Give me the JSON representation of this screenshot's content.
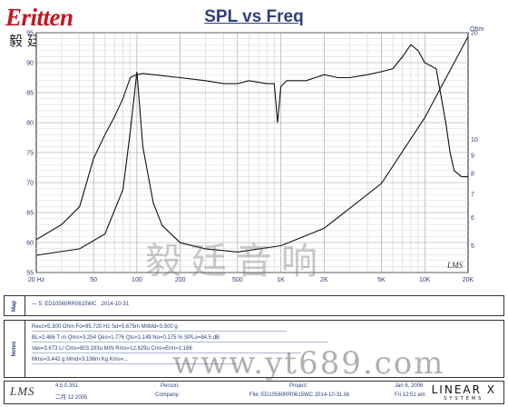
{
  "logo": {
    "brand": "Eritten",
    "cn": "毅廷音响"
  },
  "chart_data": {
    "type": "line",
    "title": "SPL vs Freq",
    "xscale": "log",
    "xlim": [
      20,
      20000
    ],
    "x_ticks": [
      "20 Hz",
      "50",
      "100",
      "200",
      "500",
      "1K",
      "2K",
      "5K",
      "10K",
      "20K"
    ],
    "x_tick_values": [
      20,
      50,
      100,
      200,
      500,
      1000,
      2000,
      5000,
      10000,
      20000
    ],
    "left_axis": {
      "unit": "",
      "ylim": [
        55,
        95
      ],
      "ticks": [
        55,
        60,
        65,
        70,
        75,
        80,
        85,
        90,
        95
      ]
    },
    "right_axis": {
      "unit": "Ohm",
      "ylim": [
        4.2,
        20
      ],
      "scale": "log",
      "ticks": [
        5,
        6,
        7,
        8,
        9,
        10,
        20
      ]
    },
    "corner_label": "LMS",
    "series": [
      {
        "axis": "left",
        "color": "#111111",
        "x": [
          20,
          30,
          40,
          50,
          60,
          70,
          80,
          90,
          95,
          100,
          110,
          130,
          200,
          300,
          400,
          500,
          600,
          800,
          900,
          950,
          1000,
          1100,
          1500,
          2000,
          2500,
          3000,
          4000,
          5000,
          6000,
          7000,
          8000,
          9000,
          10000,
          12000,
          14000,
          15000,
          16000,
          18000,
          20000
        ],
        "y": [
          60.5,
          63,
          66,
          74,
          78,
          81,
          84,
          87.5,
          87.8,
          88,
          88.2,
          88,
          87.5,
          87,
          86.5,
          86.5,
          87,
          86.5,
          86.5,
          80,
          86,
          87,
          87,
          88,
          87.5,
          87.5,
          88,
          88.5,
          89,
          91,
          93,
          92,
          90,
          89,
          80,
          75,
          72,
          71,
          71
        ]
      },
      {
        "axis": "right",
        "color": "#111111",
        "x": [
          20,
          40,
          60,
          80,
          90,
          100,
          110,
          130,
          150,
          200,
          300,
          500,
          1000,
          2000,
          5000,
          10000,
          20000
        ],
        "y": [
          4.7,
          4.9,
          5.4,
          7.2,
          10.5,
          15.5,
          9.5,
          6.6,
          5.7,
          5.1,
          4.9,
          4.8,
          5.0,
          5.6,
          7.5,
          11.5,
          19.5
        ]
      }
    ]
  },
  "map_panel": {
    "label": "Map",
    "entry": "5: ED10560RR0615WC",
    "date": "2014-10-31"
  },
  "notes_panel": {
    "label": "Notes",
    "lines": [
      "Revc=5.300 Ohm  Fo=95.720 Hz  Sd=5.675m M/tMd=3.500 g",
      "BL=2.486 T·m  Qms=3.254  Qes=1.776  Qts=1.149  No=0.175 %  SPLo=84.5 dB",
      "Vas=3.673 Lr  Cms=803.183u M/N  Rms=12.829u  Cms=Erm=1.166",
      "Mms=3.442 g  Mmd=3.196m Kg  Kms=..."
    ]
  },
  "footer": {
    "lms": "LMS",
    "version": "4.5.0.351",
    "version_date": "二月 12 2005",
    "person_label": "Person:",
    "company_label": "Company:",
    "project_label": "Project:",
    "file_label": "File: ED10560RR0615WC  2014-10-31.lib",
    "date1": "Jan 6, 2006",
    "date2": "Fri 12:51 am",
    "brand": "LINEAR X",
    "brand_sub": "SYSTEMS"
  },
  "watermark": {
    "cn": "毅廷音响",
    "url": "www.yt689.com"
  }
}
